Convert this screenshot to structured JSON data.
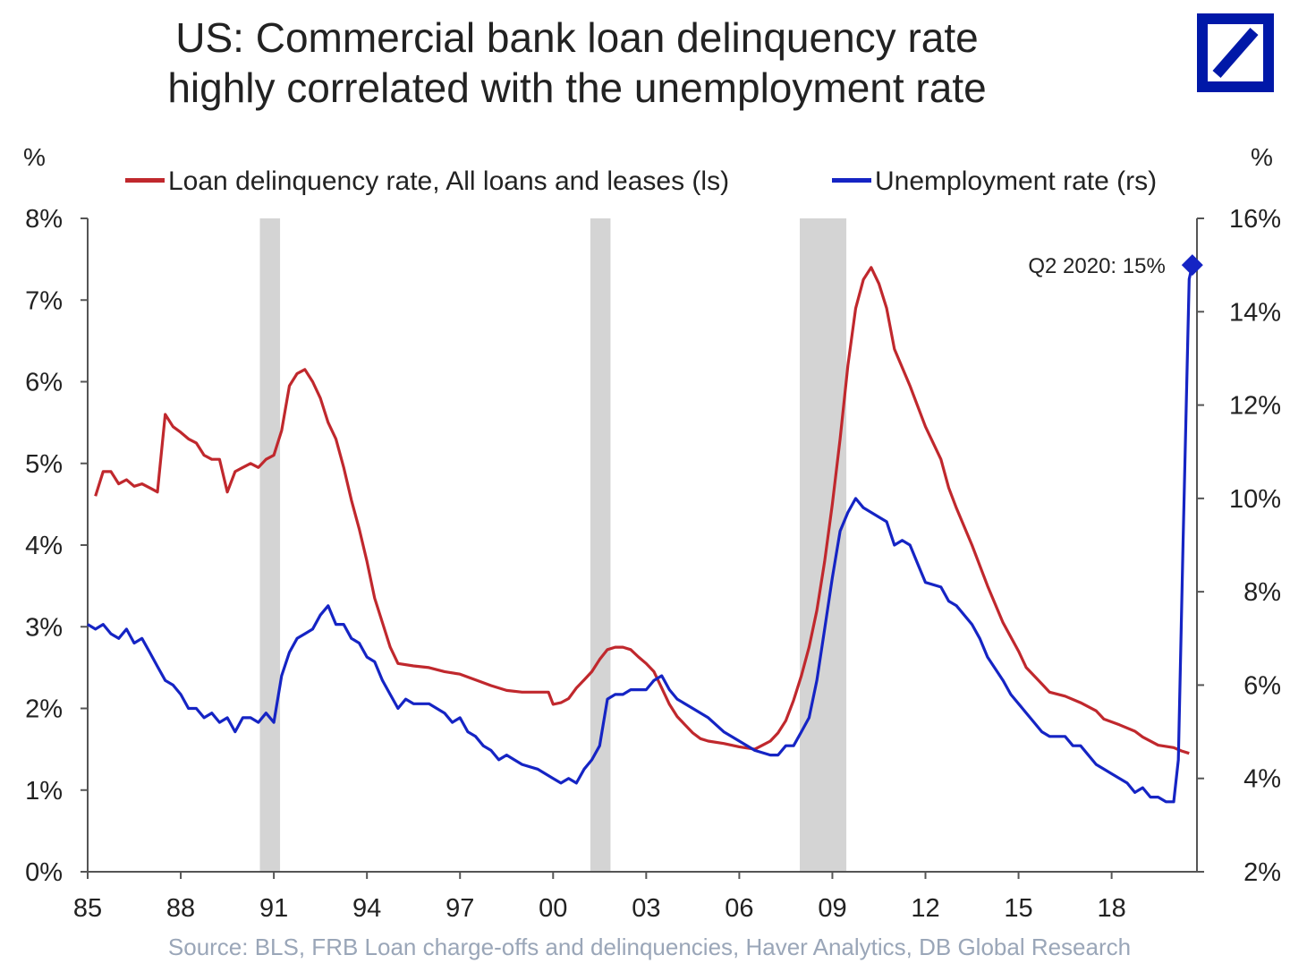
{
  "title_lines": [
    "US: Commercial bank loan delinquency rate",
    "highly correlated with the unemployment rate"
  ],
  "logo": {
    "name": "deutsche-bank-logo",
    "color": "#0018a8"
  },
  "source": "Source: BLS, FRB Loan charge-offs and delinquencies, Haver Analytics, DB Global  Research",
  "chart_data": {
    "type": "line",
    "title": "US: Commercial bank loan delinquency rate highly correlated with the unemployment rate",
    "left_axis": {
      "unit": "%",
      "ylim": [
        0,
        8
      ],
      "ticks": [
        "0%",
        "1%",
        "2%",
        "3%",
        "4%",
        "5%",
        "6%",
        "7%",
        "8%"
      ]
    },
    "right_axis": {
      "unit": "%",
      "ylim": [
        2,
        16
      ],
      "ticks": [
        "2%",
        "4%",
        "6%",
        "8%",
        "10%",
        "12%",
        "14%",
        "16%"
      ]
    },
    "x_axis": {
      "xlim": [
        1985,
        2020.75
      ],
      "ticks": [
        "85",
        "88",
        "91",
        "94",
        "97",
        "00",
        "03",
        "06",
        "09",
        "12",
        "15",
        "18"
      ]
    },
    "legend": {
      "placement": "top"
    },
    "recessions": [
      [
        1990.55,
        1991.2
      ],
      [
        2001.2,
        2001.85
      ],
      [
        2007.95,
        2009.45
      ]
    ],
    "series": [
      {
        "name": "Loan delinquency rate, All loans and leases (ls)",
        "axis": "left",
        "color": "#c0282d",
        "points": [
          [
            1985.25,
            4.6
          ],
          [
            1985.5,
            4.9
          ],
          [
            1985.75,
            4.9
          ],
          [
            1986.0,
            4.75
          ],
          [
            1986.25,
            4.8
          ],
          [
            1986.5,
            4.72
          ],
          [
            1986.75,
            4.75
          ],
          [
            1987.0,
            4.7
          ],
          [
            1987.25,
            4.65
          ],
          [
            1987.5,
            5.6
          ],
          [
            1987.75,
            5.45
          ],
          [
            1988.0,
            5.38
          ],
          [
            1988.25,
            5.3
          ],
          [
            1988.5,
            5.25
          ],
          [
            1988.75,
            5.1
          ],
          [
            1989.0,
            5.05
          ],
          [
            1989.25,
            5.05
          ],
          [
            1989.5,
            4.65
          ],
          [
            1989.75,
            4.9
          ],
          [
            1990.0,
            4.95
          ],
          [
            1990.25,
            5.0
          ],
          [
            1990.5,
            4.95
          ],
          [
            1990.75,
            5.05
          ],
          [
            1991.0,
            5.1
          ],
          [
            1991.25,
            5.4
          ],
          [
            1991.5,
            5.95
          ],
          [
            1991.75,
            6.1
          ],
          [
            1992.0,
            6.15
          ],
          [
            1992.25,
            6.0
          ],
          [
            1992.5,
            5.8
          ],
          [
            1992.75,
            5.5
          ],
          [
            1993.0,
            5.3
          ],
          [
            1993.25,
            4.95
          ],
          [
            1993.5,
            4.55
          ],
          [
            1993.75,
            4.2
          ],
          [
            1994.0,
            3.8
          ],
          [
            1994.25,
            3.35
          ],
          [
            1994.5,
            3.05
          ],
          [
            1994.75,
            2.75
          ],
          [
            1995.0,
            2.55
          ],
          [
            1995.5,
            2.52
          ],
          [
            1996.0,
            2.5
          ],
          [
            1996.5,
            2.45
          ],
          [
            1997.0,
            2.42
          ],
          [
            1997.5,
            2.35
          ],
          [
            1998.0,
            2.28
          ],
          [
            1998.5,
            2.22
          ],
          [
            1999.0,
            2.2
          ],
          [
            1999.5,
            2.2
          ],
          [
            1999.85,
            2.2
          ],
          [
            2000.0,
            2.05
          ],
          [
            2000.25,
            2.07
          ],
          [
            2000.5,
            2.12
          ],
          [
            2000.75,
            2.25
          ],
          [
            2001.0,
            2.35
          ],
          [
            2001.25,
            2.45
          ],
          [
            2001.5,
            2.6
          ],
          [
            2001.75,
            2.72
          ],
          [
            2002.0,
            2.75
          ],
          [
            2002.25,
            2.75
          ],
          [
            2002.5,
            2.72
          ],
          [
            2002.75,
            2.63
          ],
          [
            2003.0,
            2.55
          ],
          [
            2003.25,
            2.45
          ],
          [
            2003.5,
            2.25
          ],
          [
            2003.75,
            2.05
          ],
          [
            2004.0,
            1.9
          ],
          [
            2004.25,
            1.8
          ],
          [
            2004.5,
            1.7
          ],
          [
            2004.75,
            1.63
          ],
          [
            2005.0,
            1.6
          ],
          [
            2005.5,
            1.57
          ],
          [
            2006.0,
            1.53
          ],
          [
            2006.5,
            1.5
          ],
          [
            2006.75,
            1.55
          ],
          [
            2007.0,
            1.6
          ],
          [
            2007.25,
            1.7
          ],
          [
            2007.5,
            1.85
          ],
          [
            2007.75,
            2.1
          ],
          [
            2008.0,
            2.4
          ],
          [
            2008.25,
            2.75
          ],
          [
            2008.5,
            3.2
          ],
          [
            2008.75,
            3.8
          ],
          [
            2009.0,
            4.5
          ],
          [
            2009.25,
            5.3
          ],
          [
            2009.5,
            6.2
          ],
          [
            2009.75,
            6.9
          ],
          [
            2010.0,
            7.25
          ],
          [
            2010.25,
            7.4
          ],
          [
            2010.5,
            7.2
          ],
          [
            2010.75,
            6.9
          ],
          [
            2011.0,
            6.4
          ],
          [
            2011.5,
            5.95
          ],
          [
            2012.0,
            5.45
          ],
          [
            2012.5,
            5.05
          ],
          [
            2012.75,
            4.7
          ],
          [
            2013.0,
            4.45
          ],
          [
            2013.5,
            4.0
          ],
          [
            2014.0,
            3.5
          ],
          [
            2014.5,
            3.05
          ],
          [
            2015.0,
            2.7
          ],
          [
            2015.25,
            2.5
          ],
          [
            2015.75,
            2.3
          ],
          [
            2016.0,
            2.2
          ],
          [
            2016.5,
            2.15
          ],
          [
            2017.0,
            2.07
          ],
          [
            2017.5,
            1.97
          ],
          [
            2017.75,
            1.87
          ],
          [
            2018.25,
            1.8
          ],
          [
            2018.75,
            1.72
          ],
          [
            2019.0,
            1.65
          ],
          [
            2019.5,
            1.55
          ],
          [
            2020.0,
            1.52
          ],
          [
            2020.25,
            1.48
          ],
          [
            2020.5,
            1.45
          ]
        ]
      },
      {
        "name": "Unemployment rate (rs)",
        "axis": "right",
        "color": "#1524c4",
        "points": [
          [
            1985.0,
            7.3
          ],
          [
            1985.25,
            7.2
          ],
          [
            1985.5,
            7.3
          ],
          [
            1985.75,
            7.1
          ],
          [
            1986.0,
            7.0
          ],
          [
            1986.25,
            7.2
          ],
          [
            1986.5,
            6.9
          ],
          [
            1986.75,
            7.0
          ],
          [
            1987.0,
            6.7
          ],
          [
            1987.25,
            6.4
          ],
          [
            1987.5,
            6.1
          ],
          [
            1987.75,
            6.0
          ],
          [
            1988.0,
            5.8
          ],
          [
            1988.25,
            5.5
          ],
          [
            1988.5,
            5.5
          ],
          [
            1988.75,
            5.3
          ],
          [
            1989.0,
            5.4
          ],
          [
            1989.25,
            5.2
          ],
          [
            1989.5,
            5.3
          ],
          [
            1989.75,
            5.0
          ],
          [
            1990.0,
            5.3
          ],
          [
            1990.25,
            5.3
          ],
          [
            1990.5,
            5.2
          ],
          [
            1990.75,
            5.4
          ],
          [
            1991.0,
            5.2
          ],
          [
            1991.25,
            6.2
          ],
          [
            1991.5,
            6.7
          ],
          [
            1991.75,
            7.0
          ],
          [
            1992.0,
            7.1
          ],
          [
            1992.25,
            7.2
          ],
          [
            1992.5,
            7.5
          ],
          [
            1992.75,
            7.7
          ],
          [
            1993.0,
            7.3
          ],
          [
            1993.25,
            7.3
          ],
          [
            1993.5,
            7.0
          ],
          [
            1993.75,
            6.9
          ],
          [
            1994.0,
            6.6
          ],
          [
            1994.25,
            6.5
          ],
          [
            1994.5,
            6.1
          ],
          [
            1994.75,
            5.8
          ],
          [
            1995.0,
            5.5
          ],
          [
            1995.25,
            5.7
          ],
          [
            1995.5,
            5.6
          ],
          [
            1995.75,
            5.6
          ],
          [
            1996.0,
            5.6
          ],
          [
            1996.25,
            5.5
          ],
          [
            1996.5,
            5.4
          ],
          [
            1996.75,
            5.2
          ],
          [
            1997.0,
            5.3
          ],
          [
            1997.25,
            5.0
          ],
          [
            1997.5,
            4.9
          ],
          [
            1997.75,
            4.7
          ],
          [
            1998.0,
            4.6
          ],
          [
            1998.25,
            4.4
          ],
          [
            1998.5,
            4.5
          ],
          [
            1998.75,
            4.4
          ],
          [
            1999.0,
            4.3
          ],
          [
            1999.5,
            4.2
          ],
          [
            2000.0,
            4.0
          ],
          [
            2000.25,
            3.9
          ],
          [
            2000.5,
            4.0
          ],
          [
            2000.75,
            3.9
          ],
          [
            2001.0,
            4.2
          ],
          [
            2001.25,
            4.4
          ],
          [
            2001.5,
            4.7
          ],
          [
            2001.75,
            5.7
          ],
          [
            2002.0,
            5.8
          ],
          [
            2002.25,
            5.8
          ],
          [
            2002.5,
            5.9
          ],
          [
            2002.75,
            5.9
          ],
          [
            2003.0,
            5.9
          ],
          [
            2003.25,
            6.1
          ],
          [
            2003.5,
            6.2
          ],
          [
            2003.75,
            5.9
          ],
          [
            2004.0,
            5.7
          ],
          [
            2004.5,
            5.5
          ],
          [
            2005.0,
            5.3
          ],
          [
            2005.5,
            5.0
          ],
          [
            2006.0,
            4.8
          ],
          [
            2006.5,
            4.6
          ],
          [
            2007.0,
            4.5
          ],
          [
            2007.25,
            4.5
          ],
          [
            2007.5,
            4.7
          ],
          [
            2007.75,
            4.7
          ],
          [
            2008.0,
            5.0
          ],
          [
            2008.25,
            5.3
          ],
          [
            2008.5,
            6.1
          ],
          [
            2008.75,
            7.2
          ],
          [
            2009.0,
            8.3
          ],
          [
            2009.25,
            9.3
          ],
          [
            2009.5,
            9.7
          ],
          [
            2009.75,
            10.0
          ],
          [
            2010.0,
            9.8
          ],
          [
            2010.25,
            9.7
          ],
          [
            2010.5,
            9.6
          ],
          [
            2010.75,
            9.5
          ],
          [
            2011.0,
            9.0
          ],
          [
            2011.25,
            9.1
          ],
          [
            2011.5,
            9.0
          ],
          [
            2011.75,
            8.6
          ],
          [
            2012.0,
            8.2
          ],
          [
            2012.5,
            8.1
          ],
          [
            2012.75,
            7.8
          ],
          [
            2013.0,
            7.7
          ],
          [
            2013.5,
            7.3
          ],
          [
            2013.75,
            7.0
          ],
          [
            2014.0,
            6.6
          ],
          [
            2014.5,
            6.1
          ],
          [
            2014.75,
            5.8
          ],
          [
            2015.0,
            5.6
          ],
          [
            2015.5,
            5.2
          ],
          [
            2015.75,
            5.0
          ],
          [
            2016.0,
            4.9
          ],
          [
            2016.5,
            4.9
          ],
          [
            2016.75,
            4.7
          ],
          [
            2017.0,
            4.7
          ],
          [
            2017.5,
            4.3
          ],
          [
            2017.75,
            4.2
          ],
          [
            2018.0,
            4.1
          ],
          [
            2018.5,
            3.9
          ],
          [
            2018.75,
            3.7
          ],
          [
            2019.0,
            3.8
          ],
          [
            2019.25,
            3.6
          ],
          [
            2019.5,
            3.6
          ],
          [
            2019.75,
            3.5
          ],
          [
            2020.0,
            3.5
          ],
          [
            2020.15,
            4.4
          ],
          [
            2020.3,
            9.0
          ],
          [
            2020.5,
            14.7
          ],
          [
            2020.6,
            15.0
          ]
        ]
      }
    ],
    "annotation": {
      "text": "Q2 2020: 15%",
      "x": 2020.6,
      "y": 15.0,
      "axis": "right"
    }
  }
}
